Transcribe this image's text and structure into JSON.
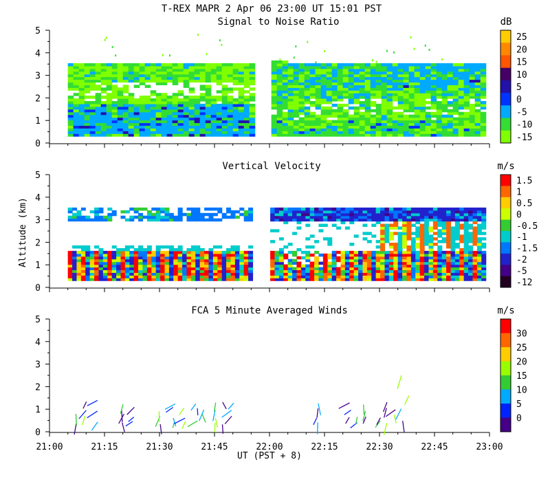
{
  "header": {
    "title": "T-REX  MAPR  2 Apr 06  23:00 UT  15:01  PST"
  },
  "x_axis": {
    "label": "UT  (PST + 8)",
    "tick_labels": [
      "21:00",
      "21:15",
      "21:30",
      "21:45",
      "22:00",
      "22:15",
      "22:30",
      "22:45",
      "23:00"
    ],
    "range_minutes": [
      0,
      120
    ]
  },
  "y_axis": {
    "label": "Altitude (km)",
    "tick_labels": [
      "0",
      "1",
      "2",
      "3",
      "4",
      "5"
    ],
    "range_km": [
      0,
      5
    ]
  },
  "colors": {
    "white": "#ffffff",
    "bright_green": "#7fff00",
    "green": "#33cc33",
    "cyan": "#00ccff",
    "blue": "#0033ff",
    "dark_blue": "#1a1acc",
    "purple": "#5500aa",
    "red": "#ff2200",
    "orange": "#ff8800",
    "yellow": "#ffcc00"
  },
  "chart_data": [
    {
      "type": "heatmap",
      "title": "Signal to Noise Ratio",
      "unit": "dB",
      "colorbar": {
        "labels": [
          "25",
          "20",
          "15",
          "10",
          "5",
          "0",
          "-5",
          "-10",
          "-15"
        ],
        "colors": [
          "#ffcc00",
          "#ff8800",
          "#ff5500",
          "#440066",
          "#2211aa",
          "#0033ff",
          "#00aaff",
          "#33dd33",
          "#7fff00"
        ]
      },
      "gap_minutes": [
        55,
        60
      ],
      "data_time_range_minutes": [
        5,
        118
      ],
      "data_altitude_range_km": [
        0.3,
        3.6
      ],
      "layers": [
        {
          "alt_km": [
            0.3,
            1.7
          ],
          "t_min": [
            5,
            55
          ],
          "value_db": -5
        },
        {
          "alt_km": [
            0.3,
            1.0
          ],
          "t_min": [
            60,
            118
          ],
          "value_db": -10
        },
        {
          "alt_km": [
            1.0,
            3.5
          ],
          "t_min": [
            60,
            118
          ],
          "value_db": -10
        },
        {
          "alt_km": [
            1.7,
            3.5
          ],
          "t_min": [
            5,
            55
          ],
          "value_db": -15
        }
      ]
    },
    {
      "type": "heatmap",
      "title": "Vertical Velocity",
      "unit": "m/s",
      "colorbar": {
        "labels": [
          "1.5",
          "1",
          "0.5",
          "0",
          "-0.5",
          "-1",
          "-1.5",
          "-2",
          "-5",
          "-12"
        ],
        "colors": [
          "#ff0000",
          "#ff6600",
          "#ffcc00",
          "#ccff00",
          "#33cc33",
          "#00cccc",
          "#0077ff",
          "#2222cc",
          "#440088",
          "#220022"
        ]
      },
      "gap_minutes": [
        55,
        60
      ],
      "data_time_range_minutes": [
        5,
        118
      ],
      "data_altitude_range_km": [
        0.3,
        3.6
      ]
    },
    {
      "type": "scatter",
      "title": "FCA 5 Minute Averaged Winds",
      "unit": "m/s",
      "colorbar": {
        "labels": [
          "30",
          "25",
          "20",
          "15",
          "10",
          "5",
          "0"
        ],
        "colors": [
          "#ff0000",
          "#ff6600",
          "#ffcc00",
          "#99ff00",
          "#33cc33",
          "#00aaff",
          "#0022ff",
          "#440088"
        ]
      },
      "barb_times_minutes": [
        7,
        10,
        13,
        20,
        23,
        30,
        34,
        37,
        40,
        42,
        45,
        47,
        50,
        73,
        82,
        84,
        86,
        90,
        92,
        94,
        96
      ],
      "barb_altitudes_km": [
        0.3,
        0.6,
        0.9,
        1.2
      ]
    }
  ]
}
